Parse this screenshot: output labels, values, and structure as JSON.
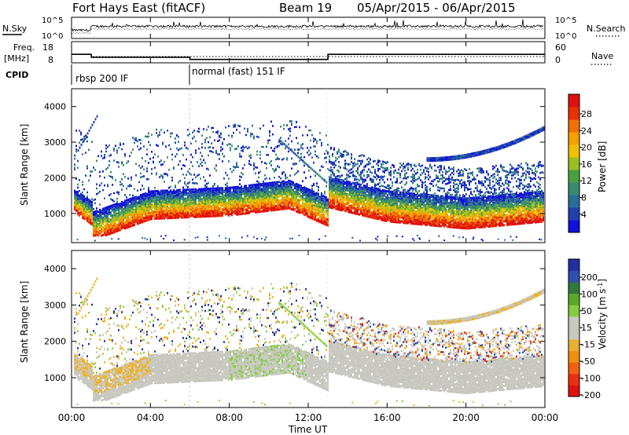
{
  "header": {
    "station": "Fort Hays East (fitACF)",
    "beam": "Beam 19",
    "dates": "05/Apr/2015 - 06/Apr/2015"
  },
  "top_panels": {
    "nsky_label": "N.Sky",
    "nsky_ticks": [
      "10^5",
      "10^0"
    ],
    "nsearch_label": "N.Search",
    "nsearch_ticks": [
      "10^5",
      "10^0"
    ],
    "freq_label_1": "Freq.",
    "freq_label_2": "[MHz]",
    "freq_ticks": [
      "18",
      "8"
    ],
    "nave_label": "Nave",
    "nave_ticks": [
      "60",
      "0"
    ],
    "cpid_label": "CPID",
    "cpid_segments": [
      "rbsp 200 IF",
      "normal (fast) 151 IF"
    ]
  },
  "power_panel": {
    "ylabel": "Slant Range [km]",
    "colorbar_label": "Power [dB]",
    "colorbar_ticks": [
      "28",
      "24",
      "20",
      "16",
      "12",
      "8",
      "4"
    ],
    "colors": [
      "#1010dd",
      "#2040aa",
      "#2a6e9a",
      "#3a8a70",
      "#4aa040",
      "#9ac020",
      "#f0c000",
      "#f5a000",
      "#f07000",
      "#e83000",
      "#e01010"
    ]
  },
  "velocity_panel": {
    "ylabel": "Slant Range [km]",
    "colorbar_label": "Velocity [m s^-1]",
    "colorbar_ticks": [
      "200",
      "100",
      "50",
      "15",
      "-15",
      "-50",
      "-100",
      "-200"
    ],
    "colors": [
      "#2030a0",
      "#3050b0",
      "#2f7a3a",
      "#5aaa2a",
      "#88cc44",
      "#c8c8c0",
      "#c8c8c0",
      "#e8b030",
      "#f09010",
      "#f06010",
      "#e83010",
      "#e01010"
    ]
  },
  "x_axis": {
    "label": "Time UT",
    "ticks": [
      "00:00",
      "04:00",
      "08:00",
      "12:00",
      "16:00",
      "20:00",
      "00:00"
    ]
  },
  "chart_data": [
    {
      "type": "line",
      "title": "Fort Hays East (fitACF)",
      "xlabel": "Time UT",
      "ylabel": "Freq. [MHz]",
      "x_hours": [
        0,
        1.0,
        1.0,
        6.0,
        6.0,
        13.0,
        13.0,
        24
      ],
      "series": [
        {
          "name": "Freq.",
          "values": [
            12,
            12,
            10.6,
            10.6,
            9.6,
            9.6,
            12,
            12
          ]
        }
      ],
      "ylim": [
        8,
        18
      ]
    },
    {
      "type": "heatmap",
      "ylabel": "Slant Range [km]",
      "xlabel": "Time UT",
      "colorbar": "Power [dB]",
      "xlim_hours": [
        0,
        24
      ],
      "ylim_km": [
        180,
        4500
      ],
      "yticks": [
        1000,
        2000,
        3000,
        4000
      ],
      "ground_scatter_upper_edge_km": [
        [
          0.0,
          1600
        ],
        [
          1.0,
          1200
        ],
        [
          1.0,
          900
        ],
        [
          4.0,
          1500
        ],
        [
          8.0,
          1600
        ],
        [
          11.0,
          1800
        ],
        [
          13.0,
          1300
        ],
        [
          13.0,
          1900
        ],
        [
          16.0,
          1500
        ],
        [
          20.0,
          1300
        ],
        [
          24.0,
          1500
        ]
      ]
    },
    {
      "type": "heatmap",
      "ylabel": "Slant Range [km]",
      "xlabel": "Time UT",
      "colorbar": "Velocity [m s^-1]",
      "xlim_hours": [
        0,
        24
      ],
      "ylim_km": [
        180,
        4500
      ],
      "yticks": [
        1000,
        2000,
        3000,
        4000
      ]
    }
  ]
}
